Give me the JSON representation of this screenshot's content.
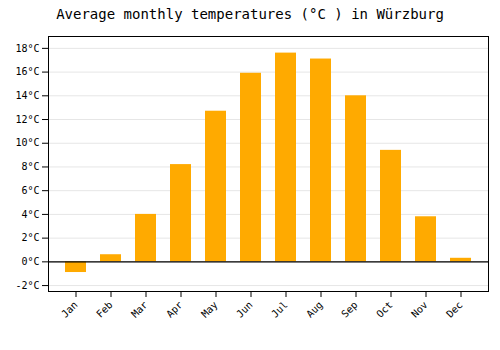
{
  "chart_data": {
    "type": "bar",
    "title": "Average monthly temperatures (°C ) in Würzburg",
    "categories": [
      "Jan",
      "Feb",
      "Mar",
      "Apr",
      "May",
      "Jun",
      "Jul",
      "Aug",
      "Sep",
      "Oct",
      "Nov",
      "Dec"
    ],
    "values": [
      -0.9,
      0.6,
      4.0,
      8.2,
      12.7,
      15.9,
      17.6,
      17.1,
      14.0,
      9.4,
      3.8,
      0.3
    ],
    "color": "#FFAA00",
    "ylim": [
      -2.5,
      19
    ],
    "yticks": [
      {
        "value": -2,
        "label": "-2°C"
      },
      {
        "value": 0,
        "label": "0°C"
      },
      {
        "value": 2,
        "label": "2°C"
      },
      {
        "value": 4,
        "label": "4°C"
      },
      {
        "value": 6,
        "label": "6°C"
      },
      {
        "value": 8,
        "label": "8°C"
      },
      {
        "value": 10,
        "label": "10°C"
      },
      {
        "value": 12,
        "label": "12°C"
      },
      {
        "value": 14,
        "label": "14°C"
      },
      {
        "value": 16,
        "label": "16°C"
      },
      {
        "value": 18,
        "label": "18°C"
      }
    ],
    "grid": true
  }
}
